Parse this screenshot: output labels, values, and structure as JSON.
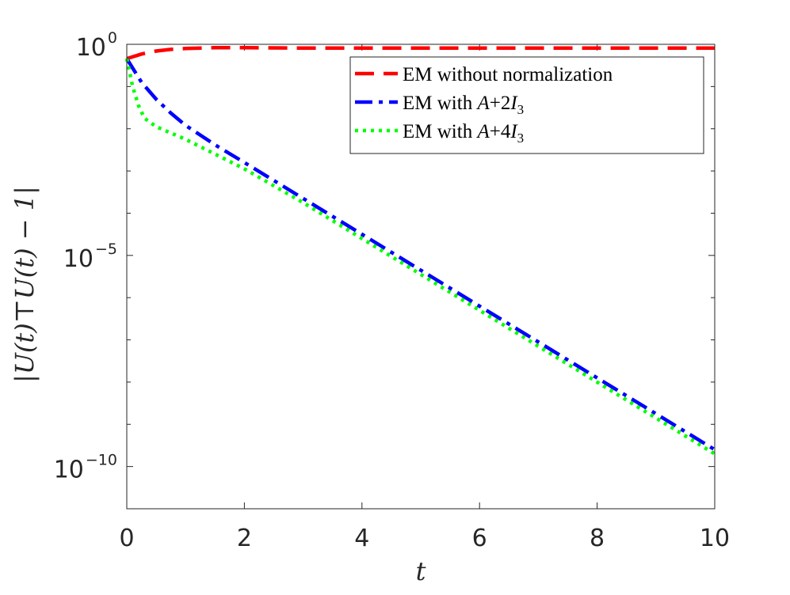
{
  "chart_data": {
    "type": "line",
    "xlabel": "t",
    "ylabel": "|U(t)⊤U(t) − 1|",
    "xlim": [
      0,
      10
    ],
    "ylim_log10": [
      -11,
      0
    ],
    "yscale": "log",
    "grid": false,
    "legend_position": "top-right",
    "x_ticks": [
      {
        "value": 0,
        "label": "0"
      },
      {
        "value": 2,
        "label": "2"
      },
      {
        "value": 4,
        "label": "4"
      },
      {
        "value": 6,
        "label": "6"
      },
      {
        "value": 8,
        "label": "8"
      },
      {
        "value": 10,
        "label": "10"
      }
    ],
    "y_ticks": [
      {
        "value": 0,
        "base": "10",
        "exp": "0"
      },
      {
        "value": -5,
        "base": "10",
        "exp": "−5"
      },
      {
        "value": -10,
        "base": "10",
        "exp": "−10"
      }
    ],
    "series": [
      {
        "name": "EM without normalization",
        "legend_text": "EM without normalization",
        "legend_math": "",
        "legend_suffix": "",
        "color": "#ff0000",
        "dash": "24,12",
        "x": [
          0,
          0.25,
          0.5,
          0.75,
          1,
          1.5,
          2,
          3,
          4,
          5,
          6,
          7,
          8,
          9,
          10
        ],
        "log10_y": [
          -0.34,
          -0.23,
          -0.16,
          -0.12,
          -0.1,
          -0.08,
          -0.08,
          -0.09,
          -0.09,
          -0.09,
          -0.09,
          -0.09,
          -0.09,
          -0.09,
          -0.09
        ]
      },
      {
        "name": "EM with A+2I3",
        "legend_text": "EM with ",
        "legend_math": "A",
        "legend_suffix": "+2I",
        "legend_sub": "3",
        "color": "#0000ff",
        "dash": "22,8,5,8",
        "x": [
          0,
          0.25,
          0.5,
          0.75,
          1,
          1.5,
          2,
          3,
          4,
          5,
          6,
          7,
          8,
          9,
          10
        ],
        "log10_y": [
          -0.34,
          -0.9,
          -1.3,
          -1.63,
          -1.92,
          -2.38,
          -2.8,
          -3.65,
          -4.5,
          -5.35,
          -6.2,
          -7.05,
          -7.9,
          -8.75,
          -9.6
        ]
      },
      {
        "name": "EM with A+4I3",
        "legend_text": "EM with ",
        "legend_math": "A",
        "legend_suffix": "+4I",
        "legend_sub": "3",
        "color": "#00ff00",
        "dash": "4,6",
        "x": [
          0,
          0.1,
          0.2,
          0.3,
          0.5,
          0.75,
          1,
          1.5,
          2,
          3,
          4,
          5,
          6,
          7,
          8,
          9,
          10
        ],
        "log10_y": [
          -0.34,
          -1.0,
          -1.45,
          -1.75,
          -1.95,
          -2.1,
          -2.25,
          -2.6,
          -2.95,
          -3.75,
          -4.6,
          -5.45,
          -6.3,
          -7.15,
          -8.0,
          -8.85,
          -9.7
        ]
      }
    ]
  }
}
